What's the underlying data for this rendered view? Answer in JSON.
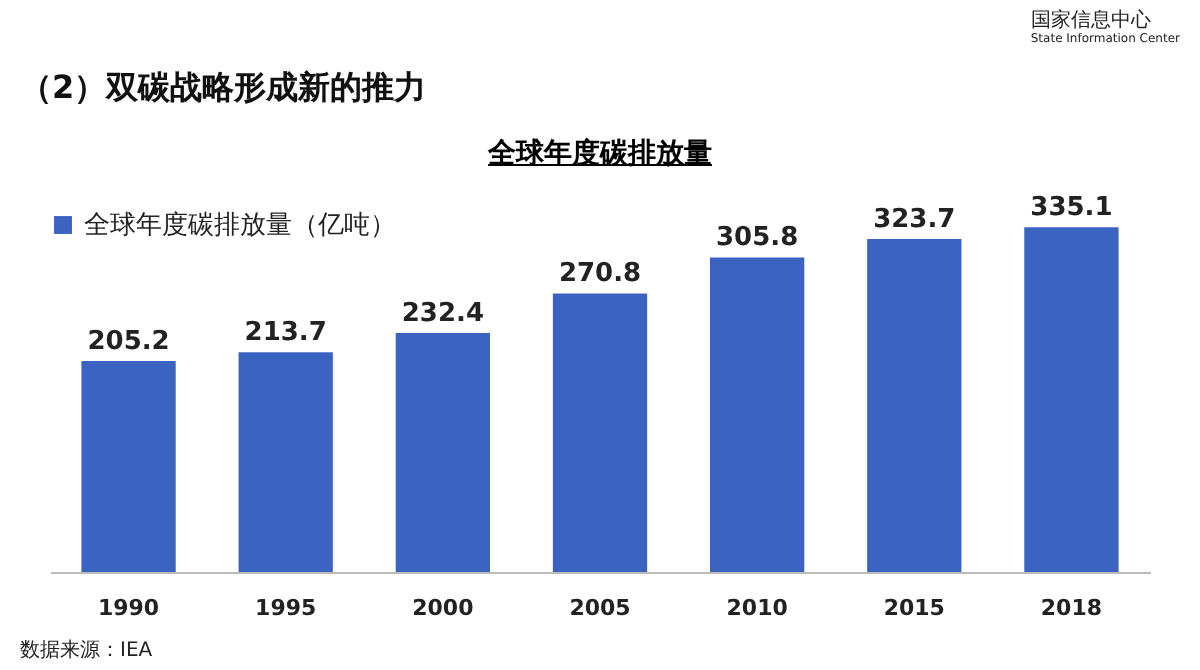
{
  "chart_data": {
    "type": "bar",
    "title": "（2）双碳战略形成新的推力",
    "subtitle": "全球年度碳排放量",
    "categories": [
      "1990",
      "1995",
      "2000",
      "2005",
      "2010",
      "2015",
      "2018"
    ],
    "series": [
      {
        "name": "全球年度碳排放量（亿吨）",
        "color": "#3a63c2",
        "values": [
          205.2,
          213.7,
          232.4,
          270.8,
          305.8,
          323.7,
          335.1
        ]
      }
    ],
    "data_labels": true,
    "legend": "top left",
    "grid": false,
    "annotations": [
      "国家信息中心",
      "State Information Center",
      "数据来源：IEA"
    ]
  }
}
